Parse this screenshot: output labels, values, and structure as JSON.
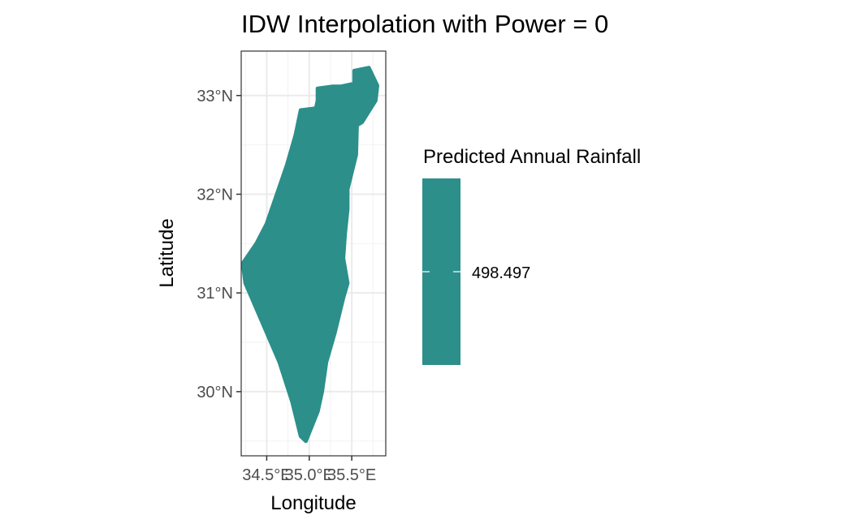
{
  "chart_data": {
    "type": "scatter",
    "title": "IDW Interpolation with Power = 0",
    "xlabel": "Longitude",
    "ylabel": "Latitude",
    "xlim": [
      34.2,
      35.9
    ],
    "ylim": [
      29.35,
      33.45
    ],
    "x_ticks": [
      {
        "value": 34.5,
        "label": "34.5°E"
      },
      {
        "value": 35.0,
        "label": "35.0°E"
      },
      {
        "value": 35.5,
        "label": "35.5°E"
      }
    ],
    "y_ticks": [
      {
        "value": 30,
        "label": "30°N"
      },
      {
        "value": 31,
        "label": "31°N"
      },
      {
        "value": 32,
        "label": "32°N"
      },
      {
        "value": 33,
        "label": "33°N"
      }
    ],
    "grid": true,
    "series": [
      {
        "value": 498.497,
        "color": "#2c8f8a",
        "outline": [
          [
            34.22,
            31.3
          ],
          [
            34.38,
            31.5
          ],
          [
            34.5,
            31.7
          ],
          [
            34.62,
            32.0
          ],
          [
            34.74,
            32.3
          ],
          [
            34.84,
            32.6
          ],
          [
            34.9,
            32.85
          ],
          [
            35.08,
            32.87
          ],
          [
            35.1,
            32.95
          ],
          [
            35.1,
            33.07
          ],
          [
            35.27,
            33.09
          ],
          [
            35.37,
            33.09
          ],
          [
            35.53,
            33.12
          ],
          [
            35.53,
            33.25
          ],
          [
            35.7,
            33.28
          ],
          [
            35.8,
            33.1
          ],
          [
            35.78,
            32.95
          ],
          [
            35.62,
            32.73
          ],
          [
            35.56,
            32.7
          ],
          [
            35.55,
            32.4
          ],
          [
            35.45,
            32.05
          ],
          [
            35.45,
            31.85
          ],
          [
            35.42,
            31.6
          ],
          [
            35.4,
            31.35
          ],
          [
            35.45,
            31.1
          ],
          [
            35.4,
            30.95
          ],
          [
            35.3,
            30.6
          ],
          [
            35.2,
            30.3
          ],
          [
            35.15,
            30.0
          ],
          [
            35.1,
            29.8
          ],
          [
            34.96,
            29.5
          ],
          [
            34.9,
            29.55
          ],
          [
            34.8,
            29.9
          ],
          [
            34.65,
            30.3
          ],
          [
            34.5,
            30.6
          ],
          [
            34.35,
            30.9
          ],
          [
            34.25,
            31.1
          ]
        ]
      }
    ],
    "legend": {
      "title": "Predicted Annual Rainfall",
      "label": "498.497",
      "position": "right"
    }
  }
}
